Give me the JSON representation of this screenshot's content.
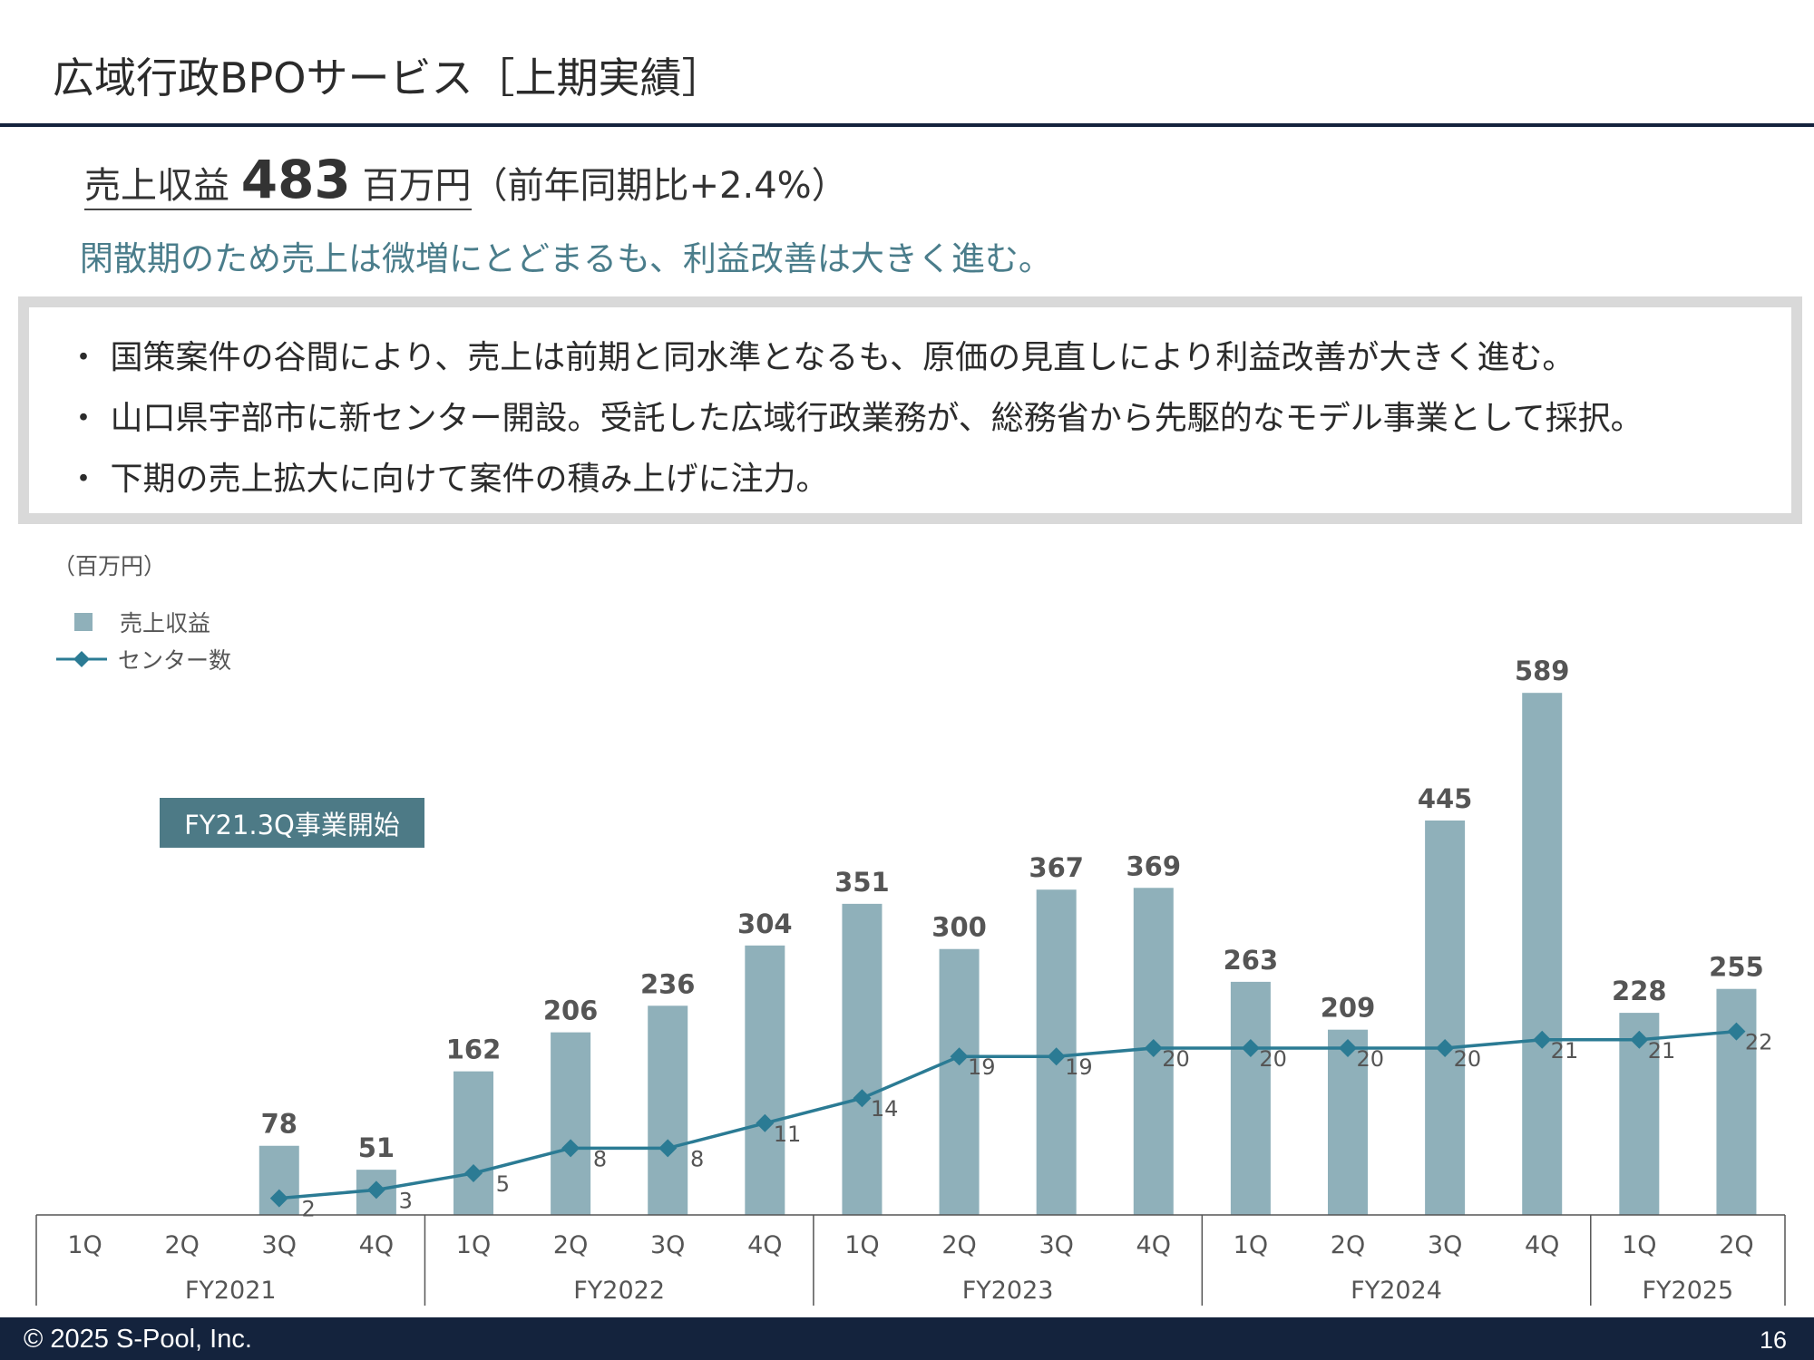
{
  "slide": {
    "title": "広域行政BPOサービス［上期実績］",
    "headline": {
      "prefix": "売上収益",
      "value": "483",
      "unit": "百万円",
      "suffix": "（前年同期比+2.4%）"
    },
    "subhead": "閑散期のため売上は微増にとどまるも、利益改善は大きく進む。",
    "bullets": [
      "・ 国策案件の谷間により、売上は前期と同水準となるも、原価の見直しにより利益改善が大きく進む。",
      "・ 山口県宇部市に新センター開設。受託した広域行政業務が、総務省から先駆的なモデル事業として採択。",
      "・ 下期の売上拡大に向けて案件の積み上げに注力。"
    ],
    "unit_label": "（百万円）",
    "callout": "FY21.3Q事業開始",
    "footer": {
      "copyright": "© 2025  S-Pool, Inc.",
      "page": "16"
    }
  },
  "colors": {
    "bar": "#8fb0ba",
    "line": "#2b7b94",
    "title_rule": "#14233d",
    "subhead": "#4a7d8b",
    "callout": "#4d7a86"
  },
  "chart_data": {
    "type": "bar",
    "categories": [
      "1Q",
      "2Q",
      "3Q",
      "4Q",
      "1Q",
      "2Q",
      "3Q",
      "4Q",
      "1Q",
      "2Q",
      "3Q",
      "4Q",
      "1Q",
      "2Q",
      "3Q",
      "4Q",
      "1Q",
      "2Q"
    ],
    "groups": [
      {
        "label": "FY2021",
        "count": 4
      },
      {
        "label": "FY2022",
        "count": 4
      },
      {
        "label": "FY2023",
        "count": 4
      },
      {
        "label": "FY2024",
        "count": 4
      },
      {
        "label": "FY2025",
        "count": 2
      }
    ],
    "series": [
      {
        "name": "売上収益",
        "type": "bar",
        "values": [
          null,
          null,
          78,
          51,
          162,
          206,
          236,
          304,
          351,
          300,
          367,
          369,
          263,
          209,
          445,
          589,
          228,
          255
        ]
      },
      {
        "name": "センター数",
        "type": "line",
        "marker": "diamond",
        "values": [
          null,
          null,
          2,
          3,
          5,
          8,
          8,
          11,
          14,
          19,
          19,
          20,
          20,
          20,
          20,
          21,
          21,
          22
        ]
      }
    ],
    "legend": "top-left",
    "grid": false,
    "ylim_bar": [
      0,
      600
    ],
    "ylim_line": [
      0,
      44
    ]
  }
}
